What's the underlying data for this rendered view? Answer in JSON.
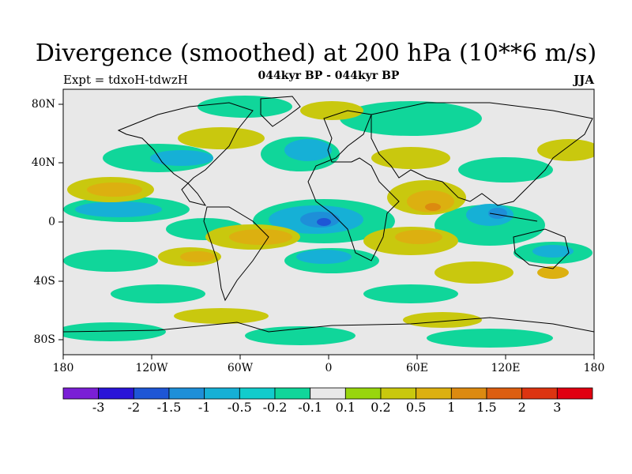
{
  "title": "Divergence (smoothed) at 200 hPa (10**6 m/s)",
  "experiment": "Expt = tdxoH-tdwzH",
  "period": "044kyr BP - 044kyr BP",
  "season": "JJA",
  "lat_labels": [
    "80N",
    "40N",
    "0",
    "40S",
    "80S"
  ],
  "lon_labels": [
    "180",
    "120W",
    "60W",
    "0",
    "60E",
    "120E",
    "180"
  ],
  "colorbar": {
    "labels": [
      "-3",
      "-2",
      "-1.5",
      "-1",
      "-0.5",
      "-0.2",
      "-0.1",
      "0.1",
      "0.2",
      "0.5",
      "1",
      "1.5",
      "2",
      "3"
    ],
    "colors": [
      "#7a1fd6",
      "#2a14d8",
      "#1e56d6",
      "#1e8fd8",
      "#16b0d6",
      "#12cccc",
      "#10d69a",
      "#e8e8e8",
      "#98d60e",
      "#c9c80e",
      "#dcb010",
      "#dc8a10",
      "#dc5e10",
      "#dc3410",
      "#e00010"
    ]
  },
  "colors": {
    "background_fill": "#e8e8e8",
    "coast": "#000000"
  }
}
